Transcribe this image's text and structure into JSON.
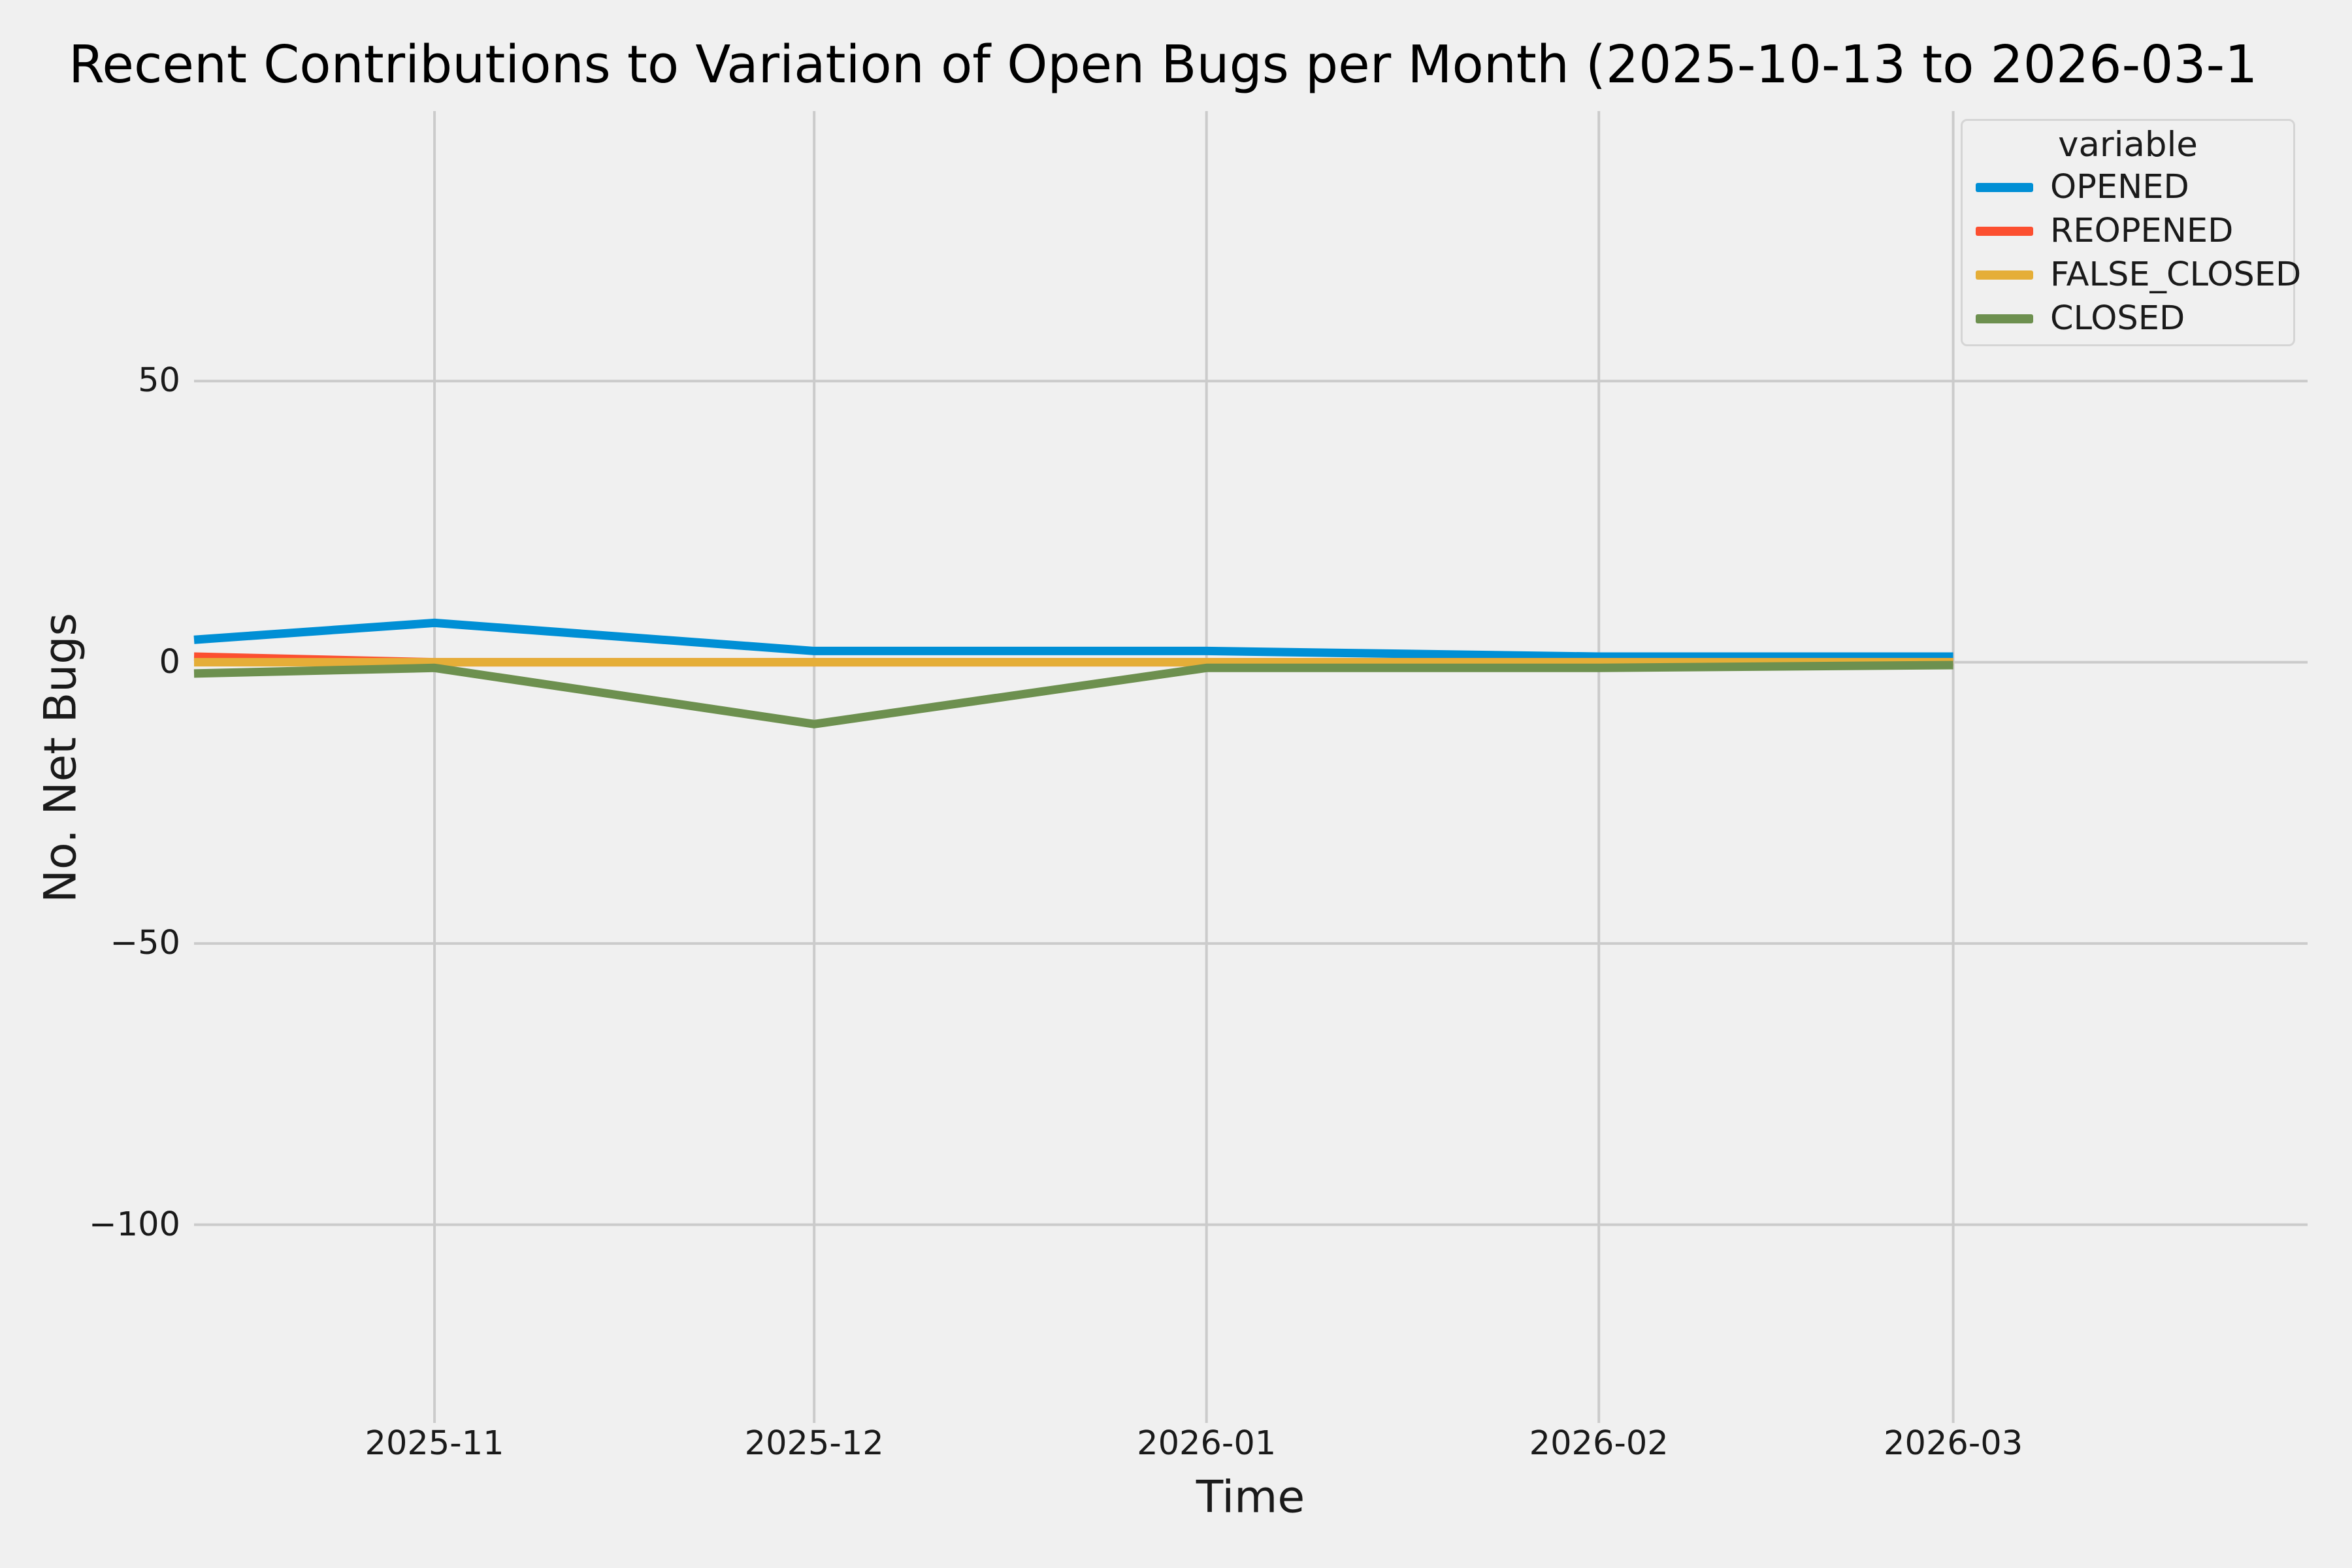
{
  "figure": {
    "background_color": "#f0f0f0",
    "grid_color": "#cbcbcb",
    "text_color": "#1a1a1a"
  },
  "chart_data": {
    "type": "line",
    "title": "Recent Contributions to Variation of Open Bugs per Month (2025-10-13 to 2026-03-1",
    "xlabel": "Time",
    "ylabel": "No. Net Bugs",
    "x": [
      "2025-10-13",
      "2025-11-01",
      "2025-12-01",
      "2026-01-01",
      "2026-02-01",
      "2026-03-01"
    ],
    "x_tick_labels": [
      "2025-11",
      "2025-12",
      "2026-01",
      "2026-02",
      "2026-03"
    ],
    "y_ticks": [
      50,
      0,
      -50,
      -100
    ],
    "y_tick_labels": [
      "50",
      "0",
      "−50",
      "−100"
    ],
    "ylim": [
      -132,
      98
    ],
    "grid": true,
    "legend": {
      "title": "variable",
      "position": "upper right"
    },
    "series": [
      {
        "name": "OPENED",
        "color": "#008fd5",
        "values": [
          4,
          7,
          2,
          2,
          1,
          1
        ]
      },
      {
        "name": "REOPENED",
        "color": "#fc4f30",
        "values": [
          1,
          0,
          0,
          0,
          0,
          0
        ]
      },
      {
        "name": "FALSE_CLOSED",
        "color": "#e5ae38",
        "values": [
          0,
          0,
          0,
          0,
          0,
          0
        ]
      },
      {
        "name": "CLOSED",
        "color": "#6d904f",
        "values": [
          -2,
          -1,
          -11,
          -1,
          -1,
          -0.5
        ]
      }
    ]
  }
}
